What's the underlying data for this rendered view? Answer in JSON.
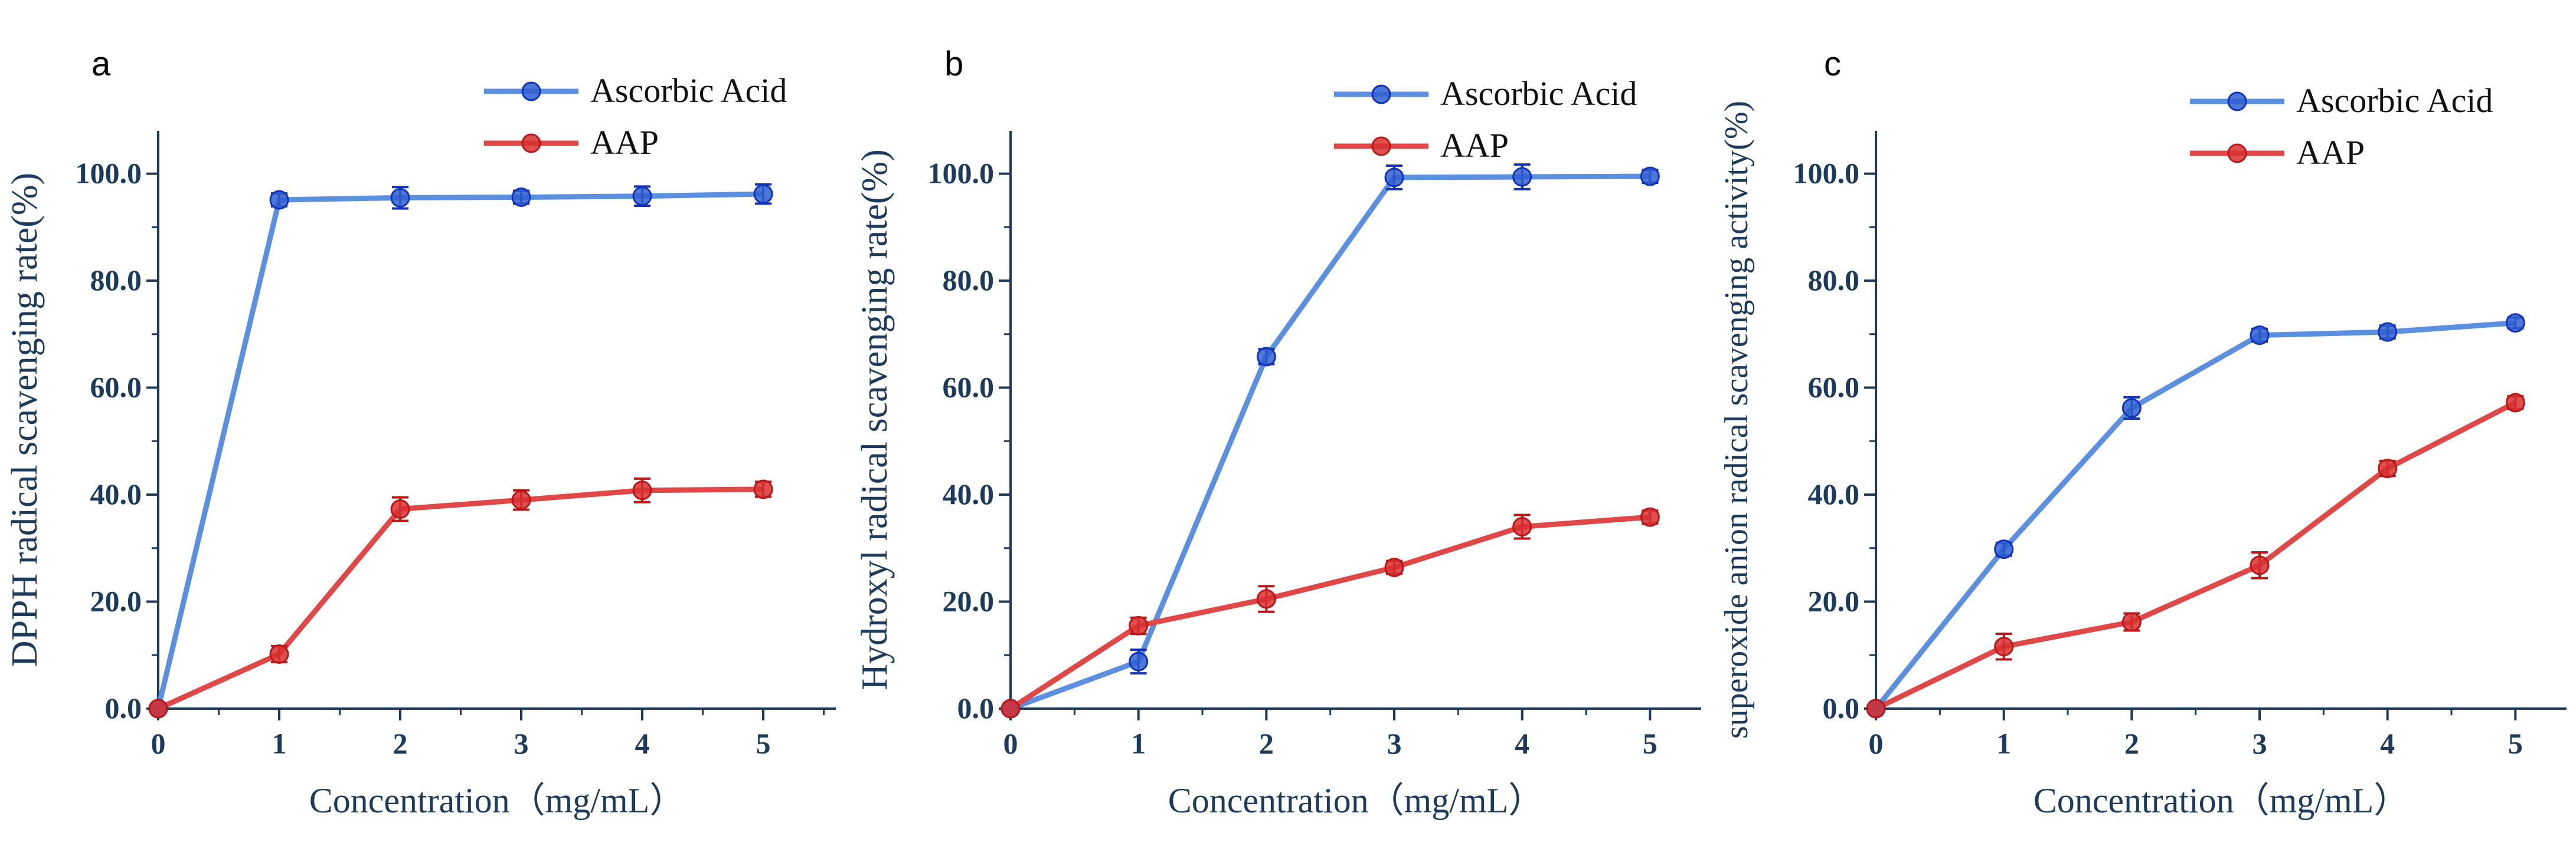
{
  "colors": {
    "axis": "#1b3a5c",
    "ascorbic_line": "#5b8fe0",
    "ascorbic_marker": "#2f5fd0",
    "ascorbic_errorbar": "#1233b8",
    "aap_line": "#e04848",
    "aap_marker": "#d83030",
    "aap_errorbar": "#b81818"
  },
  "chart_data": [
    {
      "type": "line",
      "panel_label": "a",
      "xlabel": "Concentration（mg/mL）",
      "ylabel": "DPPH radical scavenging rate(%)",
      "x": [
        0,
        1,
        2,
        3,
        4,
        5
      ],
      "xlim": [
        0,
        5.6
      ],
      "ylim": [
        0,
        108
      ],
      "yticks": [
        0,
        20,
        40,
        60,
        80,
        100
      ],
      "ytick_labels": [
        "0.0",
        "20.0",
        "40.0",
        "60.0",
        "80.0",
        "100.0"
      ],
      "xtick_labels": [
        "0",
        "1",
        "2",
        "3",
        "4",
        "5"
      ],
      "legend_position": "top-right",
      "series": [
        {
          "name": "Ascorbic Acid",
          "values": [
            0,
            95.1,
            95.5,
            95.6,
            95.8,
            96.2
          ],
          "errors": [
            0,
            1.2,
            2.0,
            1.2,
            1.8,
            1.8
          ]
        },
        {
          "name": "AAP",
          "values": [
            0,
            10.2,
            37.3,
            39.0,
            40.8,
            41.0
          ],
          "errors": [
            0,
            1.5,
            2.2,
            1.8,
            2.2,
            1.4
          ]
        }
      ]
    },
    {
      "type": "line",
      "panel_label": "b",
      "xlabel": "Concentration（mg/mL）",
      "ylabel": "Hydroxyl radical scavenging rate(%)",
      "x": [
        0,
        1,
        2,
        3,
        4,
        5
      ],
      "xlim": [
        0,
        5.4
      ],
      "ylim": [
        0,
        108
      ],
      "yticks": [
        0,
        20,
        40,
        60,
        80,
        100
      ],
      "ytick_labels": [
        "0.0",
        "20.0",
        "40.0",
        "60.0",
        "80.0",
        "100.0"
      ],
      "xtick_labels": [
        "0",
        "1",
        "2",
        "3",
        "4",
        "5"
      ],
      "legend_position": "top-right",
      "series": [
        {
          "name": "Ascorbic Acid",
          "values": [
            0,
            8.8,
            65.8,
            99.3,
            99.4,
            99.5
          ],
          "errors": [
            0,
            2.2,
            1.4,
            2.2,
            2.3,
            1.2
          ]
        },
        {
          "name": "AAP",
          "values": [
            0,
            15.5,
            20.5,
            26.4,
            34.0,
            35.8
          ],
          "errors": [
            0,
            1.5,
            2.4,
            1.2,
            2.2,
            1.2
          ]
        }
      ]
    },
    {
      "type": "line",
      "panel_label": "c",
      "xlabel": "Concentration（mg/mL）",
      "ylabel": "superoxide anion radical scavenging activity(%)",
      "x": [
        0,
        1,
        2,
        3,
        4,
        5
      ],
      "xlim": [
        0,
        5.4
      ],
      "ylim": [
        0,
        108
      ],
      "yticks": [
        0,
        20,
        40,
        60,
        80,
        100
      ],
      "ytick_labels": [
        "0.0",
        "20.0",
        "40.0",
        "60.0",
        "80.0",
        "100.0"
      ],
      "xtick_labels": [
        "0",
        "1",
        "2",
        "3",
        "4",
        "5"
      ],
      "legend_position": "top-right",
      "series": [
        {
          "name": "Ascorbic Acid",
          "values": [
            0,
            29.8,
            56.2,
            69.8,
            70.4,
            72.1
          ],
          "errors": [
            0,
            1.2,
            2.0,
            1.2,
            1.2,
            1.0
          ]
        },
        {
          "name": "AAP",
          "values": [
            0,
            11.6,
            16.2,
            26.8,
            44.9,
            57.2
          ],
          "errors": [
            0,
            2.4,
            1.6,
            2.4,
            1.4,
            1.2
          ]
        }
      ]
    }
  ]
}
